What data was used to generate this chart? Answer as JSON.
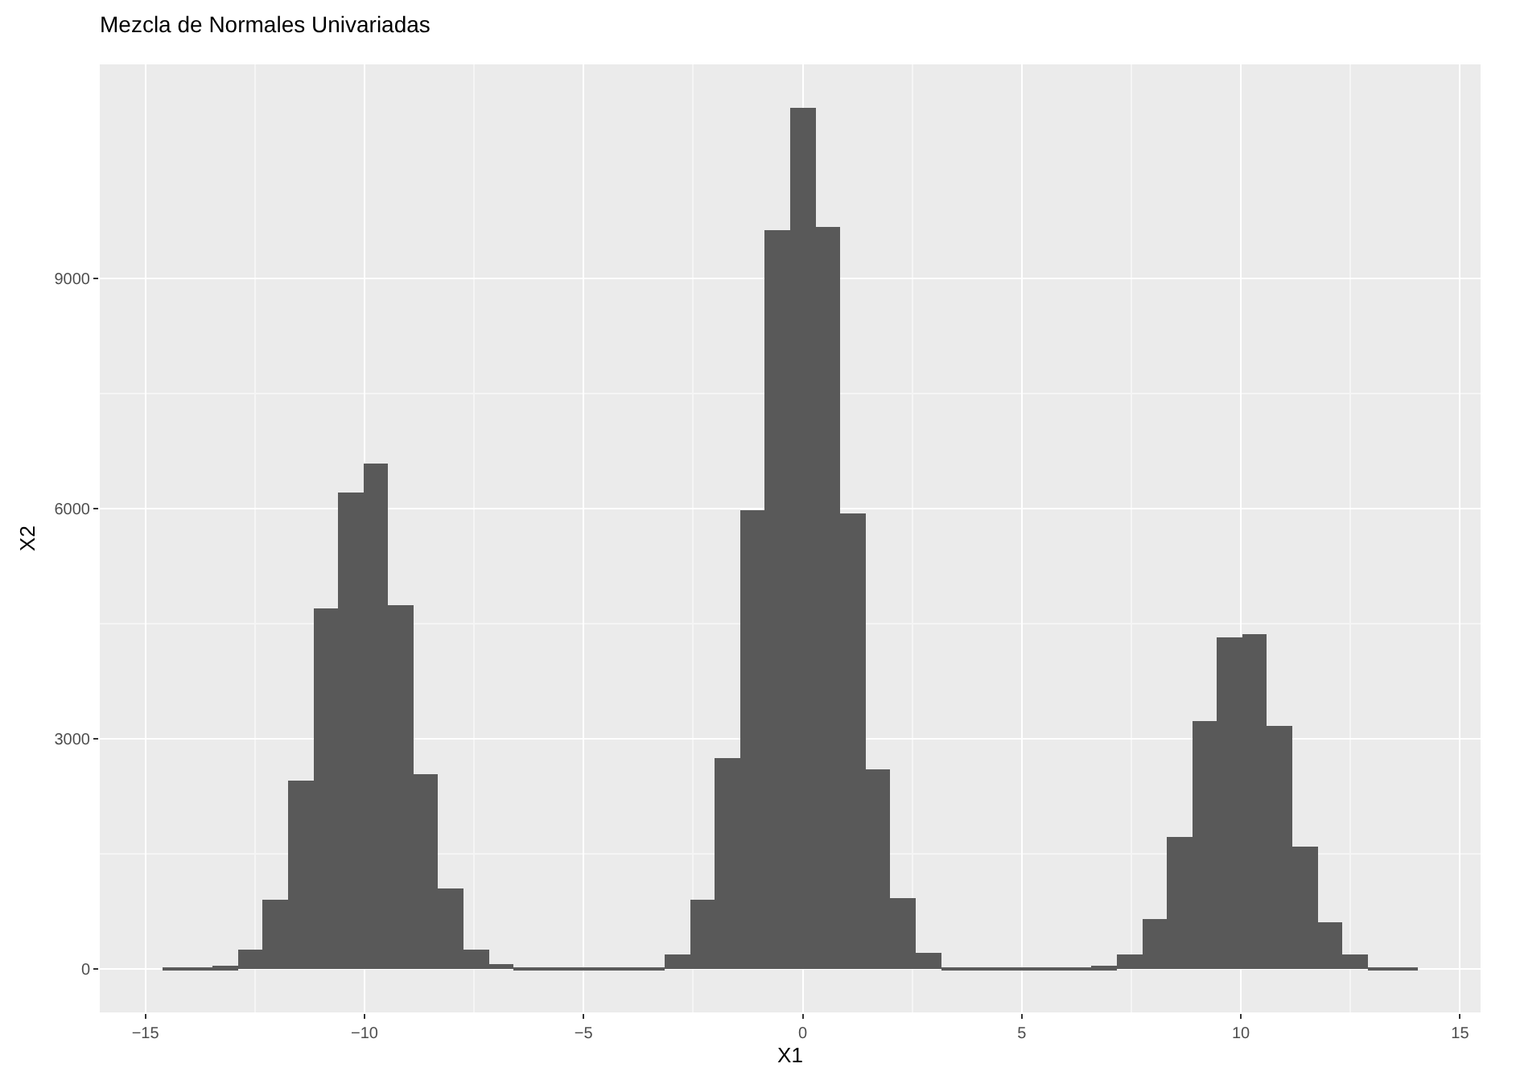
{
  "chart_data": {
    "type": "histogram",
    "title": "Mezcla de Normales Univariadas",
    "xlabel": "X1",
    "ylabel": "X2",
    "bins": [
      -14.61,
      -14.04,
      -13.46,
      -12.89,
      -12.32,
      -11.75,
      -11.17,
      -10.6,
      -10.03,
      -9.45,
      -8.88,
      -8.31,
      -7.73,
      -7.16,
      -6.59,
      -6.02,
      -5.44,
      -4.87,
      -4.3,
      -3.72,
      -3.15,
      -2.58,
      -2.0,
      -1.43,
      -0.86,
      -0.29,
      0.29,
      0.86,
      1.43,
      2.01,
      2.58,
      3.15,
      3.73,
      4.3,
      4.87,
      5.45,
      6.02,
      6.59,
      7.16,
      7.74,
      8.31,
      8.88,
      9.46,
      10.03,
      10.6,
      11.18,
      11.75,
      12.32,
      12.89,
      13.47,
      14.04
    ],
    "values": [
      10,
      10,
      40,
      250,
      910,
      2460,
      4710,
      6210,
      6590,
      4740,
      2540,
      1050,
      250,
      60,
      20,
      10,
      10,
      10,
      10,
      30,
      200,
      900,
      2760,
      5970,
      9630,
      11230,
      9660,
      5930,
      2610,
      920,
      220,
      30,
      10,
      10,
      10,
      10,
      10,
      40,
      190,
      660,
      1730,
      3240,
      4330,
      4360,
      3180,
      1590,
      620,
      190,
      20,
      10
    ],
    "color": "#595959",
    "xlim": [
      -16.04,
      15.47
    ],
    "xticks": [
      -15,
      -10,
      -5,
      0,
      5,
      10,
      15
    ],
    "ylim": [
      -561,
      11787
    ],
    "yticks": [
      0,
      3000,
      6000,
      9000
    ],
    "grid": true
  }
}
